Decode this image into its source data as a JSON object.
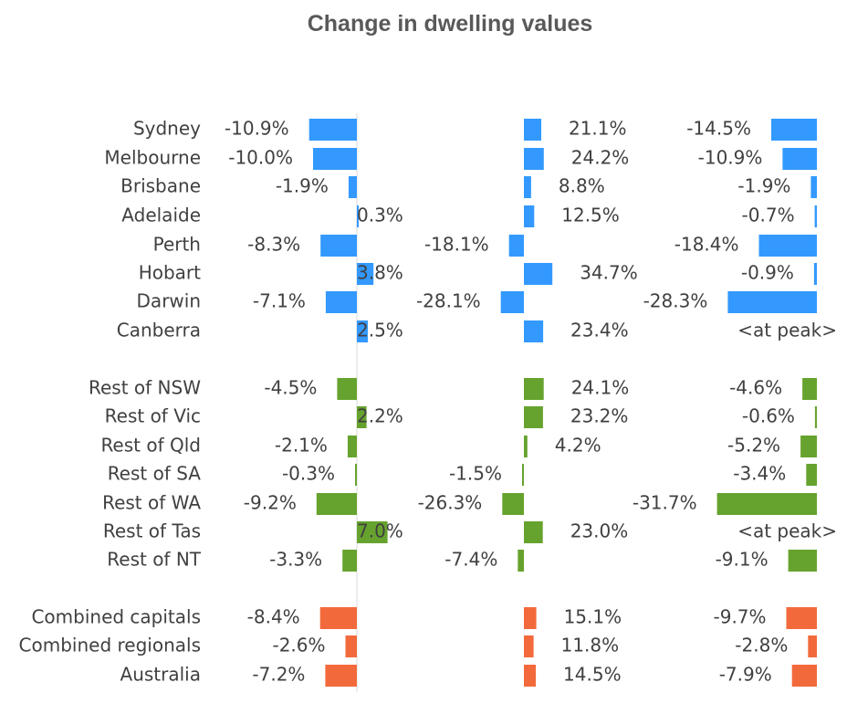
{
  "chart_data": {
    "type": "bar",
    "orientation": "horizontal",
    "title": "Change in dwelling values",
    "categories": [
      "Sydney",
      "Melbourne",
      "Brisbane",
      "Adelaide",
      "Perth",
      "Hobart",
      "Darwin",
      "Canberra",
      "Rest of NSW",
      "Rest of Vic",
      "Rest of Qld",
      "Rest of SA",
      "Rest of WA",
      "Rest of Tas",
      "Rest of NT",
      "Combined capitals",
      "Combined regionals",
      "Australia"
    ],
    "groups": [
      {
        "rows": [
          0,
          1,
          2,
          3,
          4,
          5,
          6,
          7
        ],
        "color": "#3399FF"
      },
      {
        "rows": [
          8,
          9,
          10,
          11,
          12,
          13,
          14
        ],
        "color": "#66A32E"
      },
      {
        "rows": [
          15,
          16,
          17
        ],
        "color": "#F26A3B"
      }
    ],
    "series": [
      {
        "values": [
          -10.9,
          -10.0,
          -1.9,
          0.3,
          -8.3,
          3.8,
          -7.1,
          2.5,
          -4.5,
          2.2,
          -2.1,
          -0.3,
          -9.2,
          7.0,
          -3.3,
          -8.4,
          -2.6,
          -7.2
        ],
        "labels": [
          "-10.9%",
          "-10.0%",
          "-1.9%",
          "0.3%",
          "-8.3%",
          "3.8%",
          "-7.1%",
          "2.5%",
          "-4.5%",
          "2.2%",
          "-2.1%",
          "-0.3%",
          "-9.2%",
          "7.0%",
          "-3.3%",
          "-8.4%",
          "-2.6%",
          "-7.2%"
        ]
      },
      {
        "values": [
          21.1,
          24.2,
          8.8,
          12.5,
          -18.1,
          34.7,
          -28.1,
          23.4,
          24.1,
          23.2,
          4.2,
          -1.5,
          -26.3,
          23.0,
          -7.4,
          15.1,
          11.8,
          14.5
        ],
        "labels": [
          "21.1%",
          "24.2%",
          "8.8%",
          "12.5%",
          "-18.1%",
          "34.7%",
          "-28.1%",
          "23.4%",
          "24.1%",
          "23.2%",
          "4.2%",
          "-1.5%",
          "-26.3%",
          "23.0%",
          "-7.4%",
          "15.1%",
          "11.8%",
          "14.5%"
        ]
      },
      {
        "values": [
          -14.5,
          -10.9,
          -1.9,
          -0.7,
          -18.4,
          -0.9,
          -28.3,
          null,
          -4.6,
          -0.6,
          -5.2,
          -3.4,
          -31.7,
          null,
          -9.1,
          -9.7,
          -2.8,
          -7.9
        ],
        "labels": [
          "-14.5%",
          "-10.9%",
          "-1.9%",
          "-0.7%",
          "-18.4%",
          "-0.9%",
          "-28.3%",
          "<at peak>",
          "-4.6%",
          "-0.6%",
          "-5.2%",
          "-3.4%",
          "-31.7%",
          "<at peak>",
          "-9.1%",
          "-9.7%",
          "-2.8%",
          "-7.9%"
        ]
      }
    ],
    "legend": "none",
    "grid": false
  }
}
